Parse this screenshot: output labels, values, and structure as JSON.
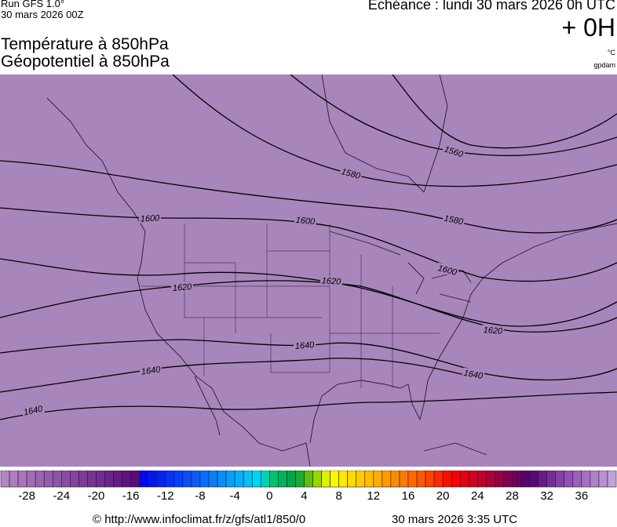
{
  "header": {
    "run": "Run GFS 1.0°",
    "run_date": "30 mars 2026 00Z",
    "echeance": "Echéance : lundi 30 mars 2026 0h UTC",
    "lead_time": "+ 0H",
    "title_line1": "Température à 850hPa",
    "title_line2": "Géopotentiel à 850hPa",
    "unit_temp": "°C",
    "unit_geo": "gpdam"
  },
  "map": {
    "background_color": "#a886bb",
    "contour_color": "#000000",
    "contour_labels": [
      "1560",
      "1580",
      "1580",
      "1600",
      "1600",
      "1600",
      "1620",
      "1620",
      "1620",
      "1640",
      "1640",
      "1640",
      "1640"
    ]
  },
  "colorbar": {
    "min": -31,
    "max": 40,
    "stops": [
      {
        "t": -31,
        "color": "#b689c6"
      },
      {
        "t": -15.5,
        "color": "#5a0a7c"
      },
      {
        "t": -15,
        "color": "#0000f0"
      },
      {
        "t": -8,
        "color": "#0a64ff"
      },
      {
        "t": -1,
        "color": "#00dcf5"
      },
      {
        "t": 0,
        "color": "#00c878"
      },
      {
        "t": 3,
        "color": "#00a040"
      },
      {
        "t": 5,
        "color": "#78c800"
      },
      {
        "t": 7,
        "color": "#ffff00"
      },
      {
        "t": 12,
        "color": "#ffb400"
      },
      {
        "t": 18,
        "color": "#ff5000"
      },
      {
        "t": 21,
        "color": "#ff0000"
      },
      {
        "t": 26,
        "color": "#a0003c"
      },
      {
        "t": 30,
        "color": "#500070"
      },
      {
        "t": 34,
        "color": "#8c48b0"
      },
      {
        "t": 40,
        "color": "#c8a8dc"
      }
    ],
    "ticks": [
      "-28",
      "-24",
      "-20",
      "-16",
      "-12",
      "-8",
      "-4",
      "0",
      "4",
      "8",
      "12",
      "16",
      "20",
      "24",
      "28",
      "32",
      "36"
    ]
  },
  "footer": {
    "source": "© http://www.infoclimat.fr/z/gfs/atl1/850/0",
    "generated": "30 mars 2026  3:35 UTC"
  }
}
